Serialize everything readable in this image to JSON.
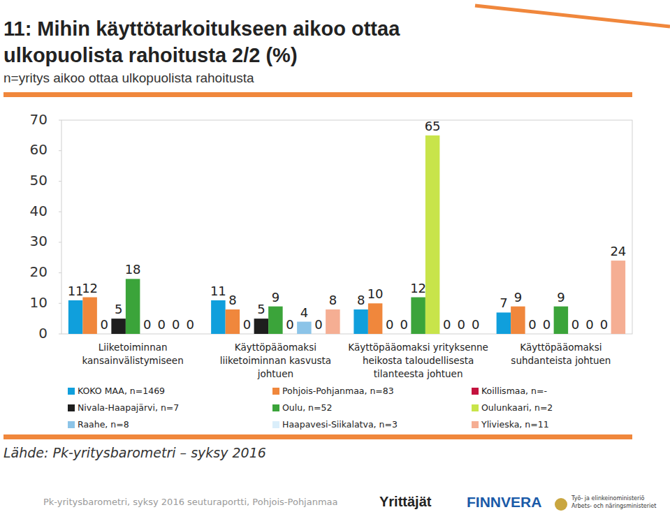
{
  "chart_data": {
    "type": "bar",
    "title": "11: Mihin käyttötarkoitukseen aikoo ottaa ulkopuolista rahoitusta 2/2 (%)",
    "subtitle": "n=yritys aikoo ottaa ulkopuolista rahoitusta",
    "categories": [
      "Liiketoiminnan kansainvälistymiseen",
      "Käyttöpääomaksi liiketoiminnan kasvusta johtuen",
      "Käyttöpääomaksi yrityksenne heikosta taloudellisesta tilanteesta johtuen",
      "Käyttöpääomaksi suhdanteista johtuen"
    ],
    "series": [
      {
        "name": "KOKO MAA, n=1469",
        "color": "#109fdc",
        "values": [
          11,
          11,
          8,
          7
        ]
      },
      {
        "name": "Pohjois-Pohjanmaa, n=83",
        "color": "#f0873c",
        "values": [
          12,
          8,
          10,
          9
        ]
      },
      {
        "name": "Koillismaa, n=-",
        "color": "#c4123e",
        "values": [
          0,
          0,
          0,
          0
        ]
      },
      {
        "name": "Nivala-Haapajärvi, n=7",
        "color": "#1e1e1e",
        "values": [
          5,
          5,
          0,
          0
        ]
      },
      {
        "name": "Oulu, n=52",
        "color": "#3ba43a",
        "values": [
          18,
          9,
          12,
          9
        ]
      },
      {
        "name": "Oulunkaari, n=2",
        "color": "#c8e44a",
        "values": [
          0,
          0,
          65,
          0
        ]
      },
      {
        "name": "Raahe, n=8",
        "color": "#8cc4e8",
        "values": [
          0,
          4,
          0,
          0
        ]
      },
      {
        "name": "Haapavesi-Siikalatva, n=3",
        "color": "#daeefa",
        "values": [
          0,
          0,
          0,
          0
        ]
      },
      {
        "name": "Ylivieska, n=11",
        "color": "#f5ae93",
        "values": [
          0,
          8,
          0,
          24
        ]
      }
    ],
    "ylim": [
      0,
      70
    ],
    "yticks": [
      0,
      10,
      20,
      30,
      40,
      50,
      60,
      70
    ],
    "grid": false,
    "data_labels": true,
    "legend": "bottom"
  },
  "footer": {
    "source": "Lähde: Pk-yritysbarometri – syksy 2016",
    "report": "Pk-yritysbarometri, syksy 2016 seuturaportti, Pohjois-Pohjanmaa",
    "logos": [
      "Yrittäjät",
      "FINNVERA"
    ],
    "ministry": [
      "Työ- ja elinkeinoministeriö",
      "Arbets- och näringsministeriet"
    ]
  }
}
